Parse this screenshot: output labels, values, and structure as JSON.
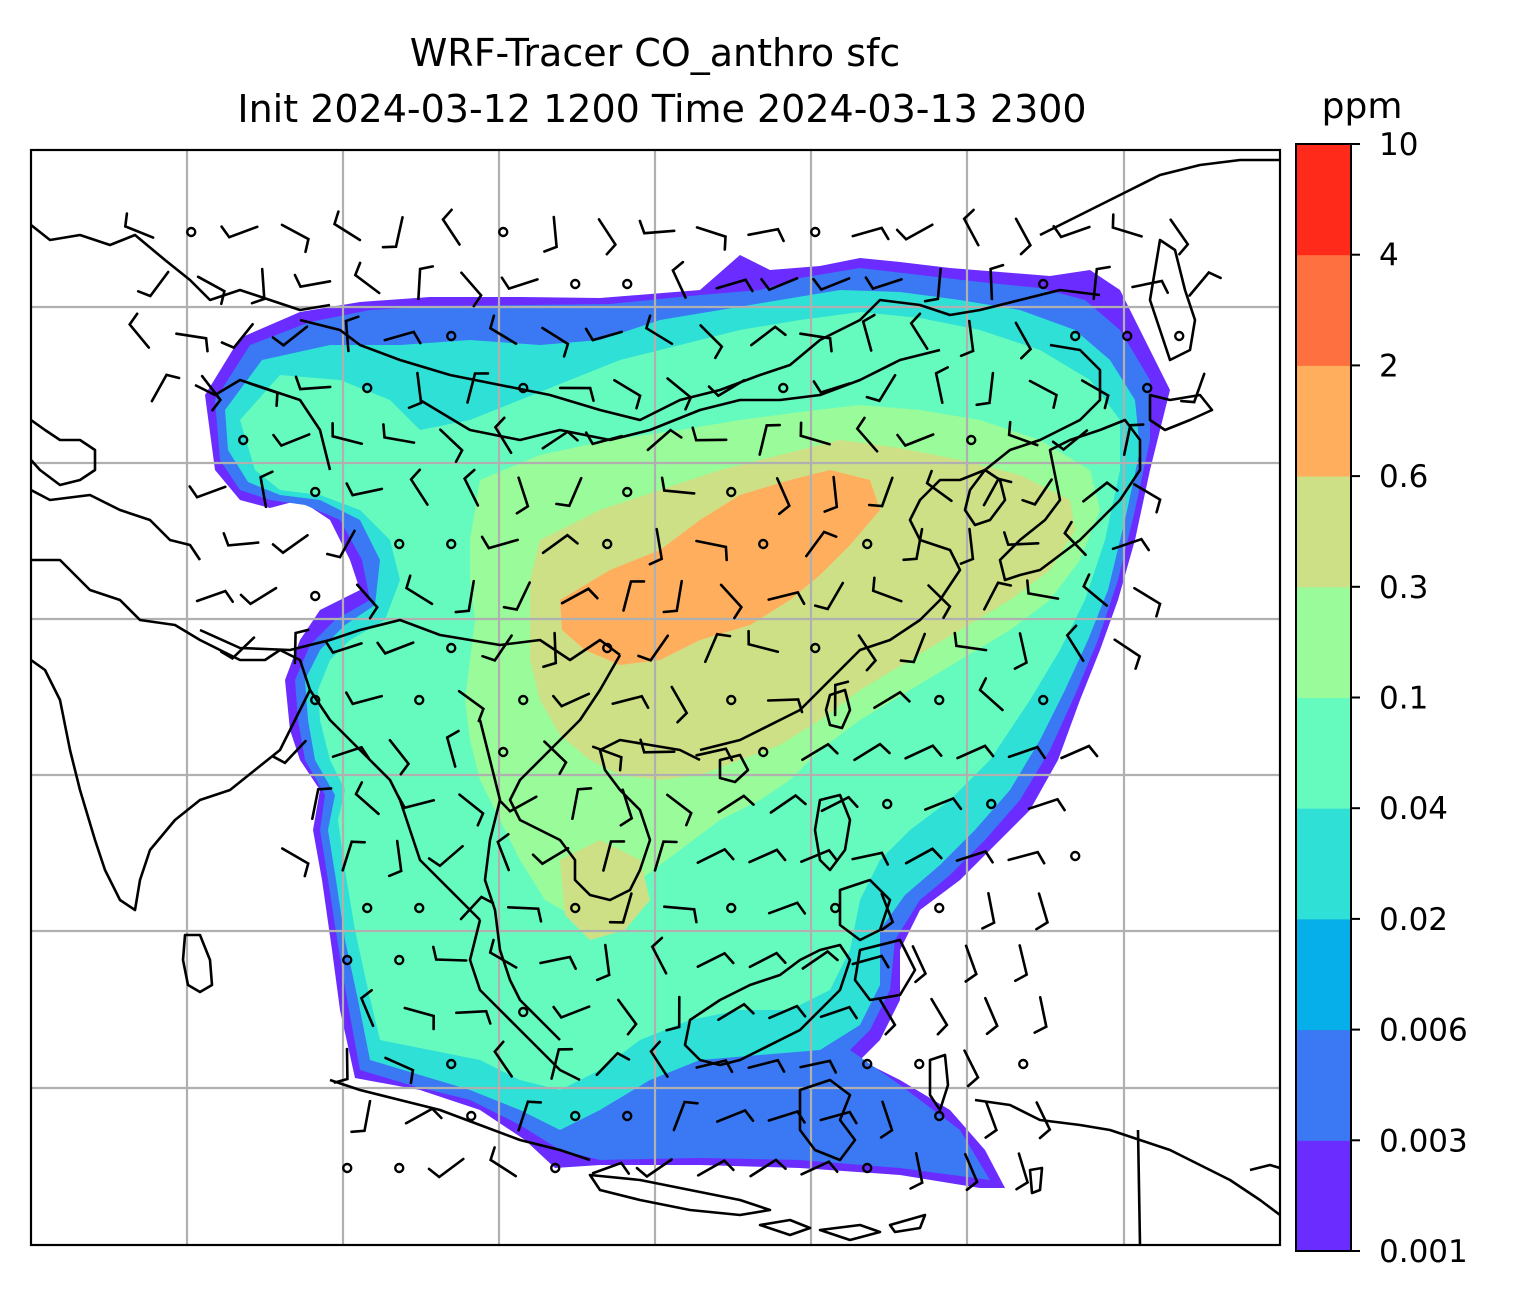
{
  "title": {
    "line1": "WRF-Tracer CO_anthro sfc",
    "line2": "Init 2024-03-12 1200 Time 2024-03-13 2300"
  },
  "colorbar": {
    "unit": "ppm",
    "levels": [
      "0.001",
      "0.003",
      "0.006",
      "0.02",
      "0.04",
      "0.1",
      "0.3",
      "0.6",
      "2",
      "4",
      "10"
    ],
    "colors": [
      "#6a2cff",
      "#3a78f4",
      "#06aeea",
      "#2ee0d6",
      "#66fbbe",
      "#99fb99",
      "#cde086",
      "#ffae5e",
      "#ff7040",
      "#ff2a1a"
    ]
  },
  "map": {
    "background": "#ffffff",
    "gridline_color": "#b0b0b0",
    "coastline_color": "#000000",
    "field_colors": {
      "outer": "#6a2cff",
      "blue": "#3a78f4",
      "cyan": "#2ee0d6",
      "aqua": "#66fbbe",
      "green": "#99fb99",
      "olive": "#cde086",
      "orange": "#ffae5e"
    }
  }
}
